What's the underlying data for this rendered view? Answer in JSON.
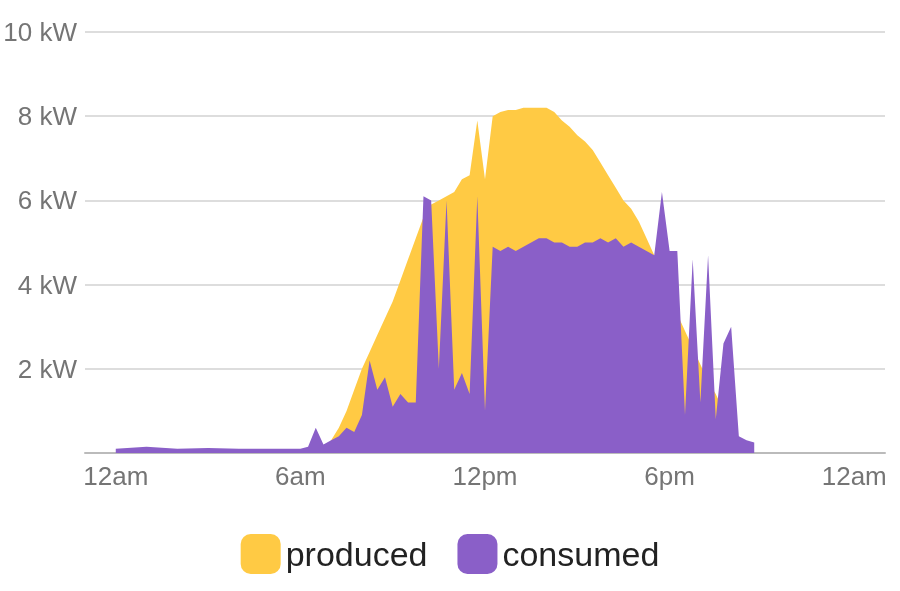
{
  "chart_data": {
    "type": "area",
    "x": [
      0,
      1,
      2,
      3,
      4,
      5,
      6,
      6.25,
      6.5,
      6.75,
      7,
      7.25,
      7.5,
      7.75,
      8,
      8.25,
      8.5,
      8.75,
      9,
      9.25,
      9.5,
      9.75,
      10,
      10.25,
      10.5,
      10.75,
      11,
      11.25,
      11.5,
      11.75,
      12,
      12.25,
      12.5,
      12.75,
      13,
      13.25,
      13.5,
      13.75,
      14,
      14.25,
      14.5,
      14.75,
      15,
      15.25,
      15.5,
      15.75,
      16,
      16.25,
      16.5,
      16.75,
      17,
      17.25,
      17.5,
      17.75,
      18,
      18.25,
      18.5,
      18.75,
      19,
      19.25,
      19.5,
      19.75,
      20,
      20.25,
      20.5,
      20.75,
      21
    ],
    "series": [
      {
        "name": "produced",
        "color": "#ffca44",
        "values": [
          null,
          null,
          null,
          null,
          null,
          null,
          null,
          null,
          null,
          0.1,
          0.3,
          0.6,
          1.0,
          1.5,
          2.0,
          2.4,
          2.8,
          3.2,
          3.6,
          4.1,
          4.6,
          5.1,
          5.6,
          5.9,
          6.0,
          6.1,
          6.2,
          6.5,
          6.6,
          7.9,
          6.5,
          8.0,
          8.1,
          8.15,
          8.15,
          8.2,
          8.2,
          8.2,
          8.2,
          8.1,
          7.9,
          7.75,
          7.55,
          7.4,
          7.2,
          6.9,
          6.6,
          6.3,
          6.0,
          5.8,
          5.5,
          5.1,
          4.7,
          4.2,
          3.8,
          3.3,
          2.9,
          2.5,
          2.1,
          1.7,
          1.4,
          1.0,
          0.7,
          0.35,
          0,
          null,
          null
        ]
      },
      {
        "name": "consumed",
        "color": "#8a5fc8",
        "values": [
          0.1,
          0.15,
          0.1,
          0.12,
          0.1,
          0.1,
          0.1,
          0.15,
          0.6,
          0.2,
          0.3,
          0.4,
          0.6,
          0.5,
          0.9,
          2.2,
          1.5,
          1.8,
          1.1,
          1.4,
          1.2,
          1.2,
          6.1,
          6.0,
          2.0,
          6.0,
          1.5,
          1.9,
          1.4,
          6.1,
          1.0,
          4.9,
          4.8,
          4.9,
          4.8,
          4.9,
          5.0,
          5.1,
          5.1,
          5.0,
          5.0,
          4.9,
          4.9,
          5.0,
          5.0,
          5.1,
          5.0,
          5.1,
          4.9,
          5.0,
          4.9,
          4.8,
          4.7,
          6.2,
          4.8,
          4.8,
          0.9,
          4.6,
          1.2,
          4.7,
          0.8,
          2.6,
          3.0,
          0.4,
          0.3,
          0.25,
          null
        ]
      }
    ],
    "xlim": [
      -1,
      25
    ],
    "xticks": [
      {
        "value": 0,
        "label": "12am"
      },
      {
        "value": 6,
        "label": "6am"
      },
      {
        "value": 12,
        "label": "12pm"
      },
      {
        "value": 18,
        "label": "6pm"
      },
      {
        "value": 24,
        "label": "12am"
      }
    ],
    "ylim": [
      0,
      10
    ],
    "yticks": [
      {
        "value": 2,
        "label": "2 kW"
      },
      {
        "value": 4,
        "label": "4 kW"
      },
      {
        "value": 6,
        "label": "6 kW"
      },
      {
        "value": 8,
        "label": "8 kW"
      },
      {
        "value": 10,
        "label": "10 kW"
      }
    ],
    "grid": true,
    "legend": "bottom"
  }
}
